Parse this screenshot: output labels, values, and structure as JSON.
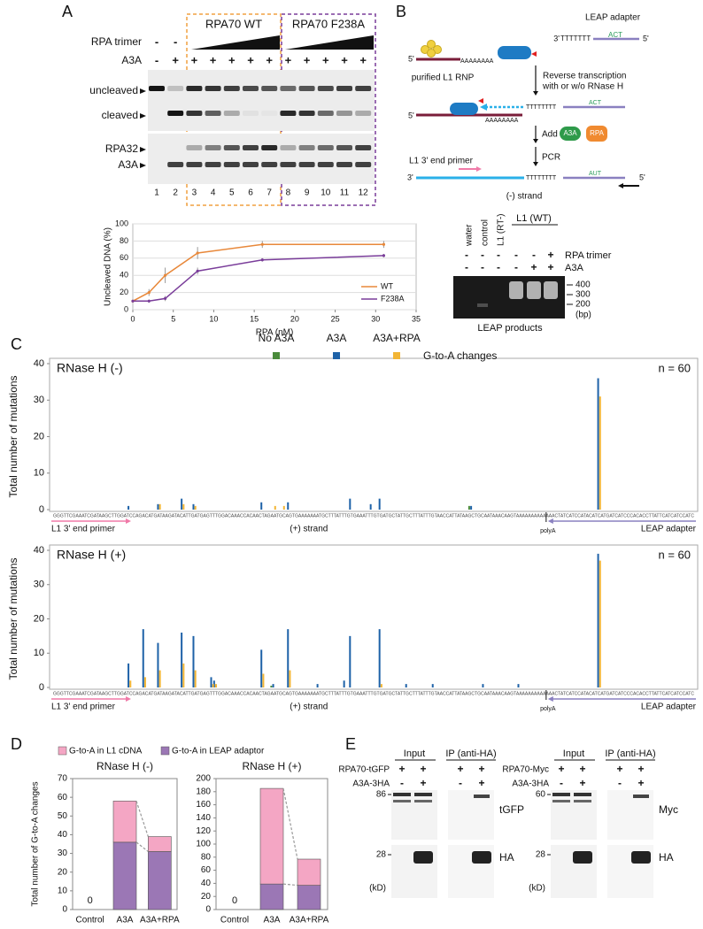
{
  "panel_labels": [
    "A",
    "B",
    "C",
    "D",
    "E"
  ],
  "panel_a": {
    "groups": [
      "RPA70 WT",
      "RPA70 F238A"
    ],
    "rows": [
      "RPA trimer",
      "A3A"
    ],
    "rpa_signs": [
      "-",
      "-"
    ],
    "a3a_signs": [
      "-",
      "+",
      "+",
      "+",
      "+",
      "+",
      "+",
      "+",
      "+",
      "+",
      "+",
      "+"
    ],
    "bands": [
      "uncleaved",
      "cleaved",
      "RPA32",
      "A3A"
    ],
    "lanes": [
      "1",
      "2",
      "3",
      "4",
      "5",
      "6",
      "7",
      "8",
      "9",
      "10",
      "11",
      "12"
    ]
  },
  "panel_b": {
    "adapter": "LEAP adapter",
    "adapter_3": "3'",
    "adapter_t": "TTTTTTT",
    "adapter_act": "ACT",
    "adapter_5": "5'",
    "rna_5": "5'",
    "polya": "AAAAAAAA",
    "rnp": "purified L1 RNP",
    "step1": [
      "Reverse transcription",
      "with or w/o RNase H"
    ],
    "cdna_5": "5'",
    "cdna_t": "TTTTTTTT",
    "cdna_act": "ACT",
    "cdna_polya": "AAAAAAAA",
    "step2": "Add",
    "a3a": "A3A",
    "rpa": "RPA",
    "step3": "PCR",
    "primer": "L1 3' end primer",
    "pcr_3": "3'",
    "pcr_t": "TTTTTTTT",
    "pcr_aut": "AUT",
    "pcr_5": "5'",
    "strand": "(-) strand",
    "gel": {
      "lanes": [
        "water",
        "control",
        "L1 (RT-)"
      ],
      "group": "L1 (WT)",
      "rows": [
        "RPA trimer",
        "A3A"
      ],
      "rpa_signs": [
        "-",
        "-",
        "-",
        "-",
        "-",
        "+"
      ],
      "a3a_signs": [
        "-",
        "-",
        "-",
        "-",
        "+",
        "+"
      ],
      "sizes": [
        "400",
        "300",
        "200"
      ],
      "unit": "(bp)",
      "caption": "LEAP products"
    }
  },
  "panel_e": {
    "blots": [
      {
        "headers": [
          "Input",
          "IP (anti-HA)"
        ],
        "rows": [
          "RPA70-tGFP",
          "A3A-3HA"
        ],
        "signs": [
          [
            "+",
            "+",
            "+",
            "+"
          ],
          [
            "-",
            "+",
            "-",
            "+"
          ]
        ],
        "markers": [
          "86",
          "28"
        ],
        "unit": "(kD)",
        "bands": [
          "tGFP",
          "HA"
        ]
      },
      {
        "headers": [
          "Input",
          "IP (anti-HA)"
        ],
        "rows": [
          "RPA70-Myc",
          "A3A-3HA"
        ],
        "signs": [
          [
            "+",
            "+",
            "+",
            "+"
          ],
          [
            "-",
            "+",
            "-",
            "+"
          ]
        ],
        "markers": [
          "60",
          "28"
        ],
        "unit": "(kD)",
        "bands": [
          "Myc",
          "HA"
        ]
      }
    ]
  },
  "chart_data": [
    {
      "type": "line",
      "xlabel": "RPA (nM)",
      "ylabel": "Uncleaved DNA (%)",
      "x": [
        0,
        2,
        4,
        8,
        16,
        31
      ],
      "series": [
        {
          "name": "WT",
          "color": "#e8883a",
          "values": [
            10,
            20,
            40,
            66,
            76,
            76
          ],
          "errors": [
            2,
            4,
            9,
            7,
            4,
            4
          ]
        },
        {
          "name": "F238A",
          "color": "#7a3d9a",
          "values": [
            10,
            10,
            13,
            45,
            58,
            63
          ],
          "errors": [
            1,
            2,
            3,
            4,
            2,
            2
          ]
        }
      ],
      "xlim": [
        0,
        35
      ],
      "xticks": [
        0,
        5,
        10,
        15,
        20,
        25,
        30,
        35
      ],
      "ylim": [
        0,
        100
      ],
      "yticks": [
        0,
        20,
        40,
        60,
        80,
        100
      ],
      "grid": true,
      "legend": "lower right"
    },
    {
      "type": "bar",
      "title": "RNase H (-)",
      "annotation": "n = 60",
      "ylabel": "Total number of mutations",
      "legend_title": "G-to-A changes",
      "sequence": "GGGTTCGAAATCGATAAGCTTGGATCCAGACATGATAAGATACATTGATGAGTTTGGACAAACCACAACTAGAATGCAGTGAAAAAAATGCTTTATTTGTGAAATTTGTGATGCTATTGCTTTATTTGTAACCATTATAAGCTGCAATAAACAAGTAAAAAAAAAAAAACTATCATCCATACATCATGATCATCCCACACCTTATTCATCATCCATC",
      "marks": [
        "L1 3' end primer",
        "(+) strand",
        "polyA",
        "LEAP adapter"
      ],
      "x": [
        25,
        35,
        43,
        47,
        70,
        74,
        77,
        79,
        100,
        107,
        110,
        141,
        184
      ],
      "series": [
        {
          "name": "No A3A",
          "color": "#4a8b3b",
          "values": [
            0,
            0,
            0,
            0,
            0,
            0,
            0,
            0,
            0,
            0,
            0,
            1,
            0
          ]
        },
        {
          "name": "A3A",
          "color": "#1e62a8",
          "values": [
            1,
            1.5,
            3,
            1.5,
            2,
            0,
            0,
            2,
            3,
            1.5,
            3,
            1,
            36
          ]
        },
        {
          "name": "A3A+RPA",
          "color": "#f2b535",
          "values": [
            0,
            1.5,
            1.5,
            1,
            0,
            1,
            1,
            0,
            0,
            0,
            0,
            0,
            31
          ]
        }
      ],
      "ylim": [
        0,
        40
      ],
      "yticks": [
        0,
        10,
        20,
        30,
        40
      ]
    },
    {
      "type": "bar",
      "title": "RNase H (+)",
      "annotation": "n = 60",
      "ylabel": "Total number of mutations",
      "sequence": "GGGTTCGAAATCGATAAGCTTGGATCCAGACATGATAAGATACATTGATGAGTTTGGACAAACCACAACTAGAATGCAGTGAAAAAAATGCTTTATTTGTGAAATTTGTGATGCTATTGCTTTATTTGTAACCATTATAAGCTGCAATAAACAAGTAAAAAAAAAAAAACTATCATCCATACATCATGATCATCCCACACCTTATTCATCATCCATC",
      "marks": [
        "L1 3' end primer",
        "(+) strand",
        "polyA",
        "LEAP adapter"
      ],
      "x": [
        25,
        30,
        35,
        43,
        47,
        53,
        54,
        70,
        74,
        79,
        89,
        98,
        100,
        110,
        119,
        128,
        145,
        157,
        184
      ],
      "series": [
        {
          "color": "#4a8b3b",
          "values": [
            0,
            0,
            0,
            0,
            0,
            0,
            0,
            0,
            0.5,
            0,
            0,
            0,
            0,
            0,
            0,
            0,
            0,
            0,
            0
          ]
        },
        {
          "color": "#1e62a8",
          "values": [
            7,
            17,
            13,
            16,
            15,
            3,
            2,
            11,
            1,
            17,
            1,
            2,
            15,
            17,
            1,
            1,
            1,
            1,
            39
          ]
        },
        {
          "color": "#f2b535",
          "values": [
            2,
            3,
            5,
            7,
            5,
            1,
            1,
            4,
            0,
            5,
            0,
            0,
            0,
            1,
            0,
            0,
            0,
            0,
            37
          ]
        }
      ],
      "ylim": [
        0,
        40
      ],
      "yticks": [
        0,
        10,
        20,
        30,
        40
      ]
    },
    {
      "type": "stacked",
      "title": "RNase H (-)",
      "ylabel": "Total number of G-to-A changes",
      "categories": [
        "Control",
        "A3A",
        "A3A+RPA"
      ],
      "series": [
        {
          "name": "G-to-A in L1 cDNA",
          "color": "#f4a6c4",
          "values": [
            0,
            22,
            8
          ]
        },
        {
          "name": "G-to-A in LEAP adaptor",
          "color": "#9b77b5",
          "values": [
            0,
            36,
            31
          ],
          "value_labels": [
            "0",
            null,
            null
          ]
        }
      ],
      "ylim": [
        0,
        70
      ],
      "yticks": [
        0,
        10,
        20,
        30,
        40,
        50,
        60,
        70
      ]
    },
    {
      "type": "stacked",
      "title": "RNase H (+)",
      "categories": [
        "Control",
        "A3A",
        "A3A+RPA"
      ],
      "series": [
        {
          "color": "#f4a6c4",
          "values": [
            0,
            146,
            40
          ]
        },
        {
          "color": "#9b77b5",
          "values": [
            0,
            39,
            37
          ],
          "value_labels": [
            "0",
            null,
            null
          ]
        }
      ],
      "ylim": [
        0,
        200
      ],
      "yticks": [
        0,
        20,
        40,
        60,
        80,
        100,
        120,
        140,
        160,
        180,
        200
      ]
    }
  ]
}
